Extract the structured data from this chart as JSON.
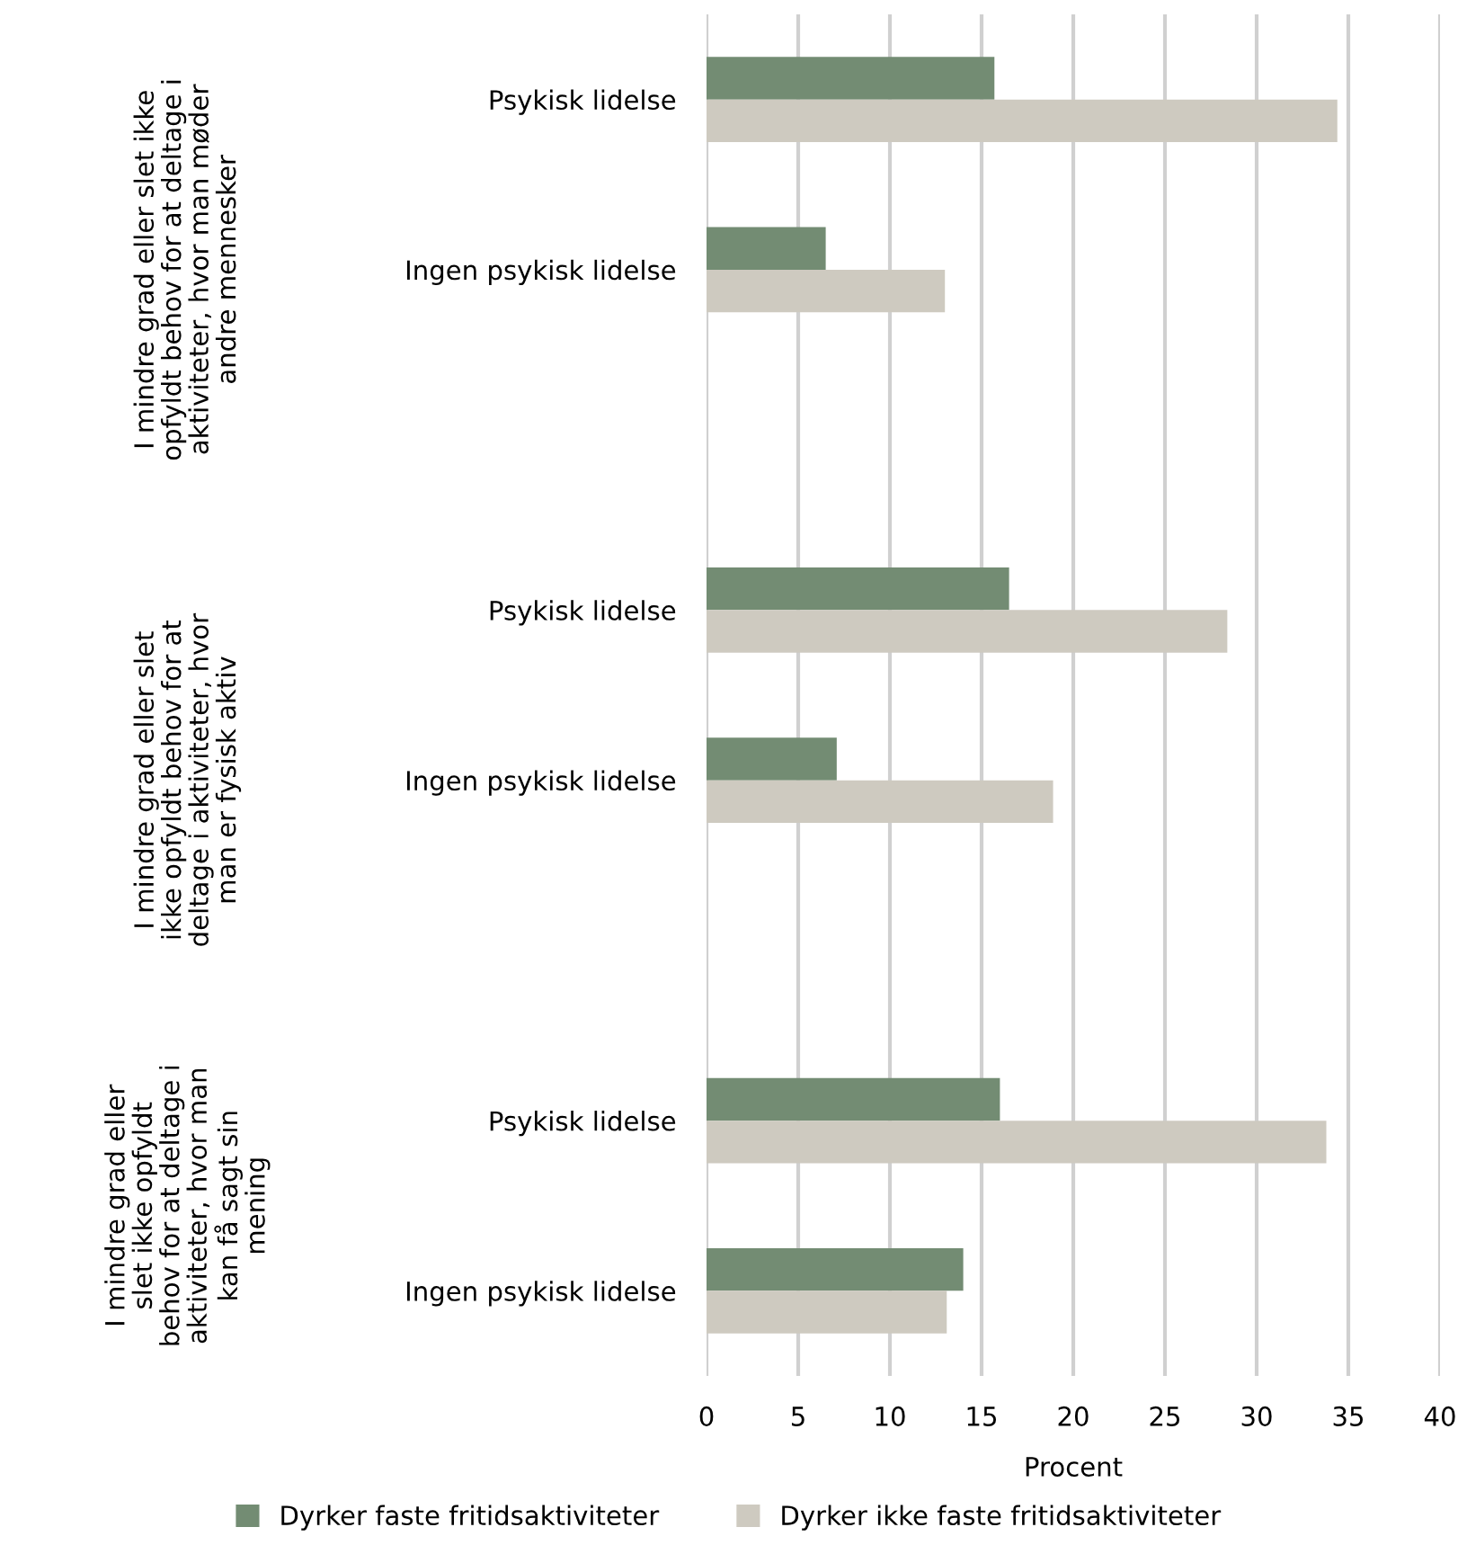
{
  "chart_data": {
    "type": "bar",
    "orientation": "horizontal",
    "xlabel": "Procent",
    "categories": [
      "Psykisk lidelse",
      "Ingen psykisk lidelse",
      null,
      "Psykisk lidelse",
      "Ingen psykisk lidelse",
      null,
      "Psykisk lidelse",
      "Ingen psykisk lidelse"
    ],
    "series": [
      {
        "name": "Dyrker faste fritidsaktiviteter",
        "color": "#738c73",
        "values": [
          15.7,
          6.5,
          null,
          16.5,
          7.1,
          null,
          16.0,
          14.0
        ]
      },
      {
        "name": "Dyrker ikke faste fritidsaktiviteter",
        "color": "#cecac0",
        "values": [
          34.4,
          13.0,
          null,
          28.4,
          18.9,
          null,
          33.8,
          13.1
        ]
      }
    ],
    "xlim": [
      0,
      40
    ],
    "xticks": [
      0,
      5,
      10,
      15,
      20,
      25,
      30,
      35,
      40
    ],
    "grid": "x",
    "legend": "bottom",
    "annotations": [
      "I mindre grad eller slet ikke\nopfyldt behov for at deltage i\naktiviteter, hvor man møder\nandre mennesker",
      "I mindre grad eller slet\nikke opfyldt behov for at\ndeltage i aktiviteter, hvor\nman er fysisk aktiv",
      "I mindre grad eller\nslet ikke opfyldt\nbehov for at deltage i\naktiviteter, hvor man\nkan få sagt sin\nmening"
    ]
  }
}
